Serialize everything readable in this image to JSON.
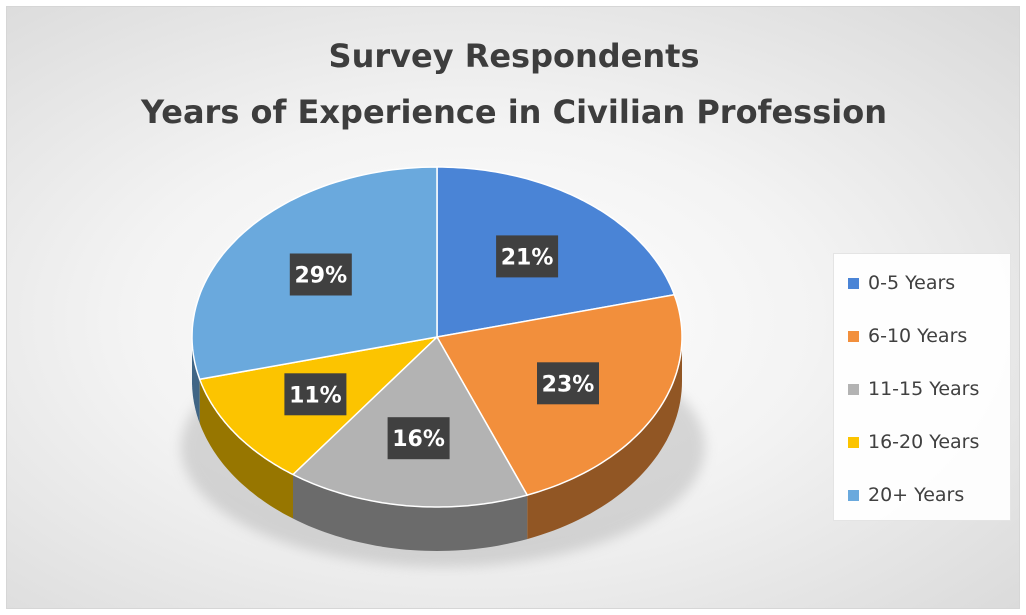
{
  "chart_data": {
    "type": "pie",
    "title_lines": [
      "Survey Respondents",
      "Years of Experience in Civilian Profession"
    ],
    "categories": [
      "0-5 Years",
      "6-10 Years",
      "11-15 Years",
      "16-20 Years",
      "20+ Years"
    ],
    "values": [
      21,
      23,
      16,
      11,
      29
    ],
    "data_labels": [
      "21%",
      "23%",
      "16%",
      "11%",
      "29%"
    ],
    "colors": [
      "#4a84d6",
      "#f28f3c",
      "#b3b3b3",
      "#fcc400",
      "#6aa9dd"
    ],
    "legend_position": "right",
    "style": "3d"
  }
}
